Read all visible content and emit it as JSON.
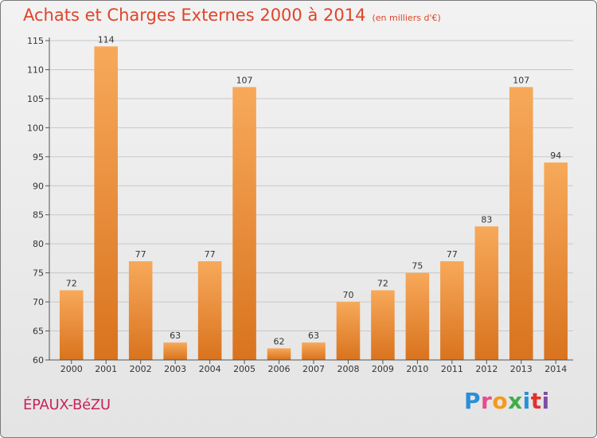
{
  "header": {
    "title": "Achats et Charges Externes 2000 à 2014",
    "unit": "(en milliers d'€)"
  },
  "footer": {
    "commune": "ÉPAUX-BéZU",
    "logo": [
      "P",
      "r",
      "o",
      "x",
      "i",
      "t",
      "i"
    ]
  },
  "colors": {
    "title": "#e0442a",
    "commune": "#c8245a",
    "bar_light": "#f7a95a",
    "bar_dark": "#d9731e",
    "grid": "#c8c8c8"
  },
  "chart_data": {
    "type": "bar",
    "title": "Achats et Charges Externes 2000 à 2014",
    "xlabel": "",
    "ylabel": "",
    "categories": [
      "2000",
      "2001",
      "2002",
      "2003",
      "2004",
      "2005",
      "2006",
      "2007",
      "2008",
      "2009",
      "2010",
      "2011",
      "2012",
      "2013",
      "2014"
    ],
    "values": [
      72,
      114,
      77,
      63,
      77,
      107,
      62,
      63,
      70,
      72,
      75,
      77,
      83,
      107,
      94
    ],
    "ylim": [
      60,
      115
    ],
    "yticks": [
      60,
      65,
      70,
      75,
      80,
      85,
      90,
      95,
      100,
      105,
      110,
      115
    ],
    "grid": true,
    "legend": "none"
  }
}
